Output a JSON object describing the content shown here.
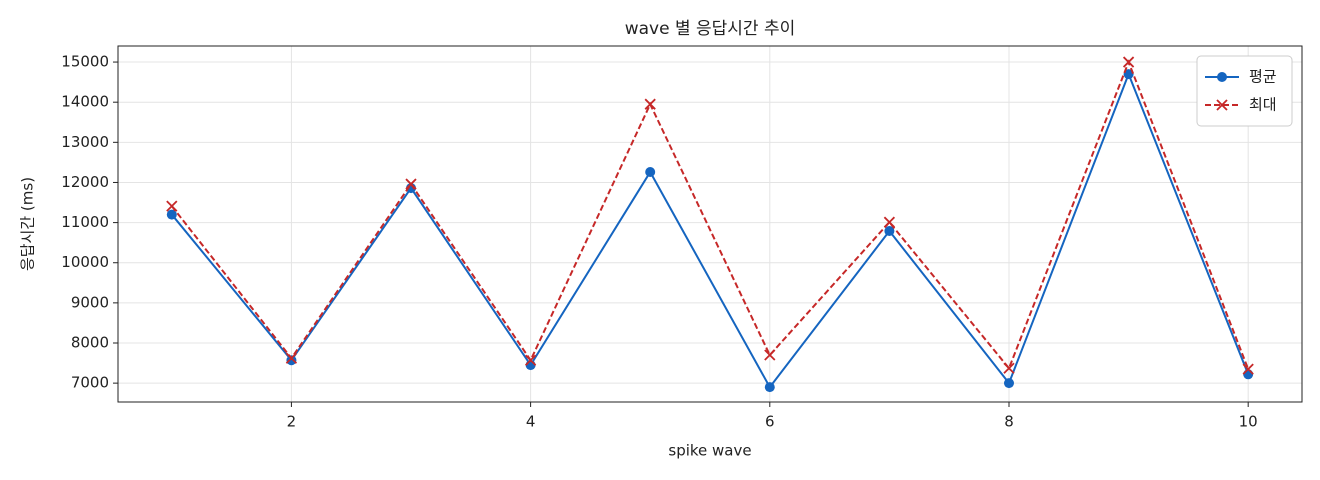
{
  "chart_data": {
    "type": "line",
    "title": "wave 별 응답시간 추이",
    "x_label": "spike wave",
    "y_label": "응답시간 (ms)",
    "x": [
      1,
      2,
      3,
      4,
      5,
      6,
      7,
      8,
      9,
      10
    ],
    "series": [
      {
        "name": "평균",
        "color": "#1565c0",
        "marker": "circle",
        "dash": "solid",
        "values": [
          11200,
          7570,
          11860,
          7450,
          12260,
          6900,
          10790,
          7000,
          14700,
          7220
        ]
      },
      {
        "name": "최대",
        "color": "#c62828",
        "marker": "x",
        "dash": "dashed",
        "values": [
          11410,
          7620,
          11960,
          7570,
          13950,
          7700,
          11010,
          7370,
          15000,
          7350
        ]
      }
    ],
    "xlim": [
      0.55,
      10.45
    ],
    "xticks": [
      2,
      4,
      6,
      8,
      10
    ],
    "ylim": [
      6530,
      15400
    ],
    "yticks": [
      7000,
      8000,
      9000,
      10000,
      11000,
      12000,
      13000,
      14000,
      15000
    ],
    "grid": true,
    "legend": "upper right"
  }
}
